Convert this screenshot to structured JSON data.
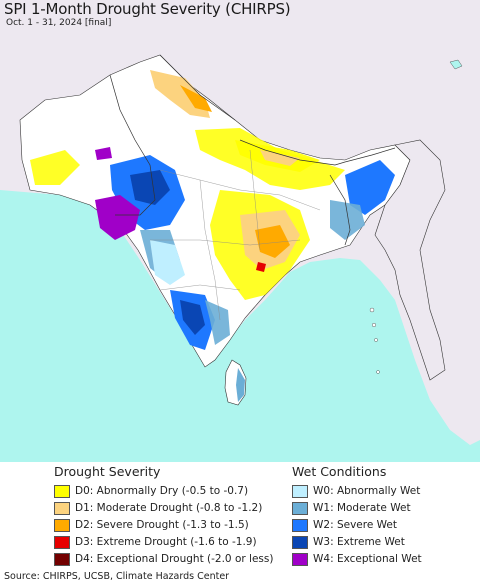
{
  "title": "SPI 1-Month Drought Severity (CHIRPS)",
  "subtitle": "Oct. 1 - 31, 2024 [final]",
  "legend": {
    "drought_heading": "Drought Severity",
    "wet_heading": "Wet Conditions",
    "drought": [
      {
        "label": "D0: Abnormally Dry (-0.5 to -0.7)",
        "color": "#ffff00"
      },
      {
        "label": "D1: Moderate Drought (-0.8 to -1.2)",
        "color": "#fcd37f"
      },
      {
        "label": "D2: Severe Drought (-1.3 to -1.5)",
        "color": "#ffaa00"
      },
      {
        "label": "D3: Extreme Drought (-1.6 to -1.9)",
        "color": "#e60000"
      },
      {
        "label": "D4: Exceptional Drought (-2.0 or less)",
        "color": "#730000"
      }
    ],
    "wet": [
      {
        "label": "W0: Abnormally Wet",
        "color": "#bfefff"
      },
      {
        "label": "W1: Moderate Wet",
        "color": "#6baed6"
      },
      {
        "label": "W2: Severe Wet",
        "color": "#1e78ff"
      },
      {
        "label": "W3: Extreme Wet",
        "color": "#0a46b4"
      },
      {
        "label": "W4: Exceptional Wet",
        "color": "#a000c8"
      }
    ]
  },
  "source": "Source: CHIRPS, UCSB, Climate Hazards Center",
  "map_colors": {
    "ocean": "#aef5ee",
    "outside": "#ede8f0",
    "land": "#ffffff",
    "border": "#333333"
  }
}
